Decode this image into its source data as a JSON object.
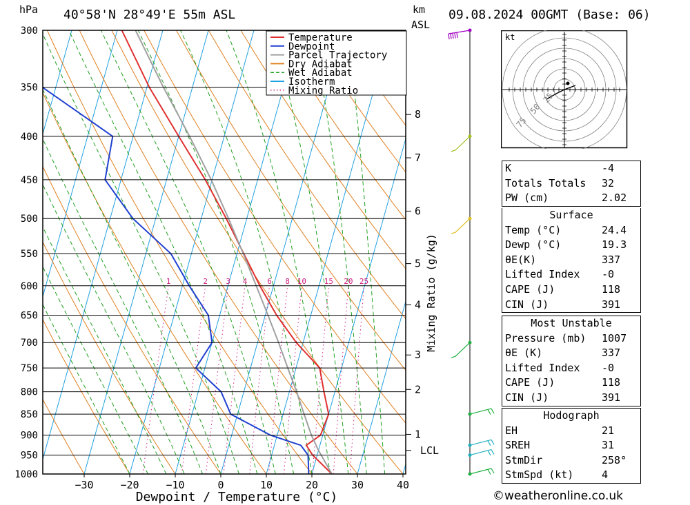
{
  "header": {
    "unit_left": "hPa",
    "location": "40°58'N 28°49'E 55m ASL",
    "km_label": "km",
    "asl_label": "ASL",
    "datetime": "09.08.2024 00GMT (Base: 06)"
  },
  "chart_data": {
    "type": "line",
    "subtype": "skew-T log-P",
    "xlabel": "Dewpoint / Temperature (°C)",
    "ylabel_left": "hPa",
    "ylabel_right": "Mixing Ratio (g/kg)",
    "x_ticks": [
      -30,
      -20,
      -10,
      0,
      10,
      20,
      30,
      40
    ],
    "x_tick_labels": [
      "−30",
      "−20",
      "−10",
      "0",
      "10",
      "20",
      "30",
      "40"
    ],
    "pressure_levels": [
      300,
      350,
      400,
      450,
      500,
      550,
      600,
      650,
      700,
      750,
      800,
      850,
      900,
      950,
      1000
    ],
    "km_ticks": [
      {
        "label": "8",
        "p": 377
      },
      {
        "label": "7",
        "p": 424
      },
      {
        "label": "6",
        "p": 490
      },
      {
        "label": "5",
        "p": 565
      },
      {
        "label": "4",
        "p": 632
      },
      {
        "label": "3",
        "p": 724
      },
      {
        "label": "2",
        "p": 795
      },
      {
        "label": "1",
        "p": 898
      },
      {
        "label": "LCL",
        "p": 938
      }
    ],
    "mixing_ratio_labels": [
      "1",
      "2",
      "3",
      "4",
      "6",
      "8",
      "10",
      "15",
      "20",
      "25"
    ],
    "legend": {
      "placement": "top-right",
      "entries": [
        {
          "name": "Temperature",
          "color": "#e03030",
          "style": "solid"
        },
        {
          "name": "Dewpoint",
          "color": "#2040d0",
          "style": "solid"
        },
        {
          "name": "Parcel Trajectory",
          "color": "#a0a0a0",
          "style": "solid"
        },
        {
          "name": "Dry Adiabat",
          "color": "#e08020",
          "style": "solid"
        },
        {
          "name": "Wet Adiabat",
          "color": "#20a020",
          "style": "dashed"
        },
        {
          "name": "Isotherm",
          "color": "#20a0e0",
          "style": "solid"
        },
        {
          "name": "Mixing Ratio",
          "color": "#d02080",
          "style": "dotted"
        }
      ]
    },
    "series": [
      {
        "name": "Temperature",
        "color": "#e03030",
        "points": [
          {
            "p": 1000,
            "t": 24.4
          },
          {
            "p": 950,
            "t": 19.0
          },
          {
            "p": 925,
            "t": 17.0
          },
          {
            "p": 900,
            "t": 19.5
          },
          {
            "p": 850,
            "t": 20.0
          },
          {
            "p": 800,
            "t": 17.6
          },
          {
            "p": 750,
            "t": 15.2
          },
          {
            "p": 700,
            "t": 8.5
          },
          {
            "p": 650,
            "t": 2.5
          },
          {
            "p": 600,
            "t": -3.0
          },
          {
            "p": 550,
            "t": -8.5
          },
          {
            "p": 500,
            "t": -14.5
          },
          {
            "p": 450,
            "t": -21.5
          },
          {
            "p": 400,
            "t": -30.0
          },
          {
            "p": 350,
            "t": -39.5
          },
          {
            "p": 300,
            "t": -49.0
          }
        ]
      },
      {
        "name": "Dewpoint",
        "color": "#2040d0",
        "points": [
          {
            "p": 1000,
            "t": 19.3
          },
          {
            "p": 950,
            "t": 18.0
          },
          {
            "p": 925,
            "t": 15.8
          },
          {
            "p": 900,
            "t": 8.5
          },
          {
            "p": 850,
            "t": -1.5
          },
          {
            "p": 800,
            "t": -5.0
          },
          {
            "p": 750,
            "t": -12.0
          },
          {
            "p": 700,
            "t": -10.0
          },
          {
            "p": 650,
            "t": -12.5
          },
          {
            "p": 600,
            "t": -18.5
          },
          {
            "p": 550,
            "t": -24.5
          },
          {
            "p": 500,
            "t": -35.0
          },
          {
            "p": 450,
            "t": -43.5
          },
          {
            "p": 400,
            "t": -44.5
          },
          {
            "p": 350,
            "t": -63.0
          },
          {
            "p": 300,
            "t": -70.0
          }
        ]
      },
      {
        "name": "Parcel Trajectory",
        "color": "#a0a0a0",
        "points": [
          {
            "p": 1000,
            "t": 24.4
          },
          {
            "p": 938,
            "t": 20.0
          },
          {
            "p": 900,
            "t": 17.5
          },
          {
            "p": 850,
            "t": 14.6
          },
          {
            "p": 800,
            "t": 11.6
          },
          {
            "p": 750,
            "t": 8.2
          },
          {
            "p": 700,
            "t": 4.6
          },
          {
            "p": 650,
            "t": 0.6
          },
          {
            "p": 600,
            "t": -3.8
          },
          {
            "p": 550,
            "t": -8.6
          },
          {
            "p": 500,
            "t": -14.0
          },
          {
            "p": 450,
            "t": -20.2
          },
          {
            "p": 400,
            "t": -27.6
          },
          {
            "p": 350,
            "t": -36.4
          },
          {
            "p": 300,
            "t": -46.0
          }
        ]
      }
    ],
    "wind_barbs": [
      {
        "p": 300,
        "color": "#a000c0"
      },
      {
        "p": 400,
        "color": "#a0c020"
      },
      {
        "p": 500,
        "color": "#e0c020"
      },
      {
        "p": 700,
        "color": "#20b040"
      },
      {
        "p": 850,
        "color": "#20b040"
      },
      {
        "p": 925,
        "color": "#20b0c0"
      },
      {
        "p": 950,
        "color": "#20b0c0"
      },
      {
        "p": 1000,
        "color": "#20b040"
      }
    ]
  },
  "hodograph": {
    "unit": "kt",
    "ring_labels": [
      "25",
      "50",
      "75"
    ]
  },
  "indices": {
    "top": [
      {
        "label": "K",
        "value": "-4"
      },
      {
        "label": "Totals Totals",
        "value": "32"
      },
      {
        "label": "PW (cm)",
        "value": "2.02"
      }
    ],
    "surface_title": "Surface",
    "surface": [
      {
        "label": "Temp (°C)",
        "value": "24.4"
      },
      {
        "label": "Dewp (°C)",
        "value": "19.3"
      },
      {
        "label": "θE(K)",
        "value": "337"
      },
      {
        "label": "Lifted Index",
        "value": "-0"
      },
      {
        "label": "CAPE (J)",
        "value": "118"
      },
      {
        "label": "CIN (J)",
        "value": "391"
      }
    ],
    "mu_title": "Most Unstable",
    "mu": [
      {
        "label": "Pressure (mb)",
        "value": "1007"
      },
      {
        "label": "θE (K)",
        "value": "337"
      },
      {
        "label": "Lifted Index",
        "value": "-0"
      },
      {
        "label": "CAPE (J)",
        "value": "118"
      },
      {
        "label": "CIN (J)",
        "value": "391"
      }
    ],
    "hodo_title": "Hodograph",
    "hodo": [
      {
        "label": "EH",
        "value": "21"
      },
      {
        "label": "SREH",
        "value": "31"
      },
      {
        "label": "StmDir",
        "value": "258°"
      },
      {
        "label": "StmSpd (kt)",
        "value": "4"
      }
    ]
  },
  "watermark": "©weatheronline.co.uk"
}
